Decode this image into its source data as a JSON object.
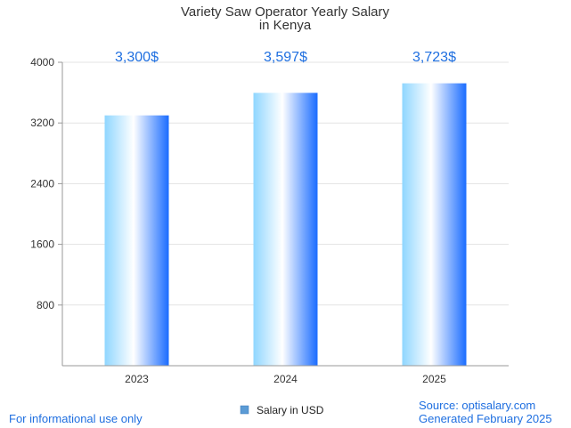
{
  "chart_data": {
    "type": "bar",
    "title_lines": [
      "Variety Saw Operator Yearly Salary",
      "in Kenya"
    ],
    "categories": [
      "2023",
      "2024",
      "2025"
    ],
    "series": [
      {
        "name": "Salary in USD",
        "values": [
          3300,
          3597,
          3723
        ]
      }
    ],
    "data_labels": [
      "3,300$",
      "3,597$",
      "3,723$"
    ],
    "y_ticks": [
      800,
      1600,
      2400,
      3200,
      4000
    ],
    "ylim": [
      0,
      4000
    ],
    "grid": true,
    "legend_position": "bottom-center"
  },
  "footer": {
    "disclaimer": "For informational use only",
    "source": "Source: optisalary.com",
    "generated": "Generated February 2025"
  },
  "colors": {
    "bar_left": "#8fd6ff",
    "bar_mid": "#ffffff",
    "bar_right": "#1a6cff",
    "label": "#1f6fe0",
    "legend_swatch": "#5b9bd5"
  }
}
